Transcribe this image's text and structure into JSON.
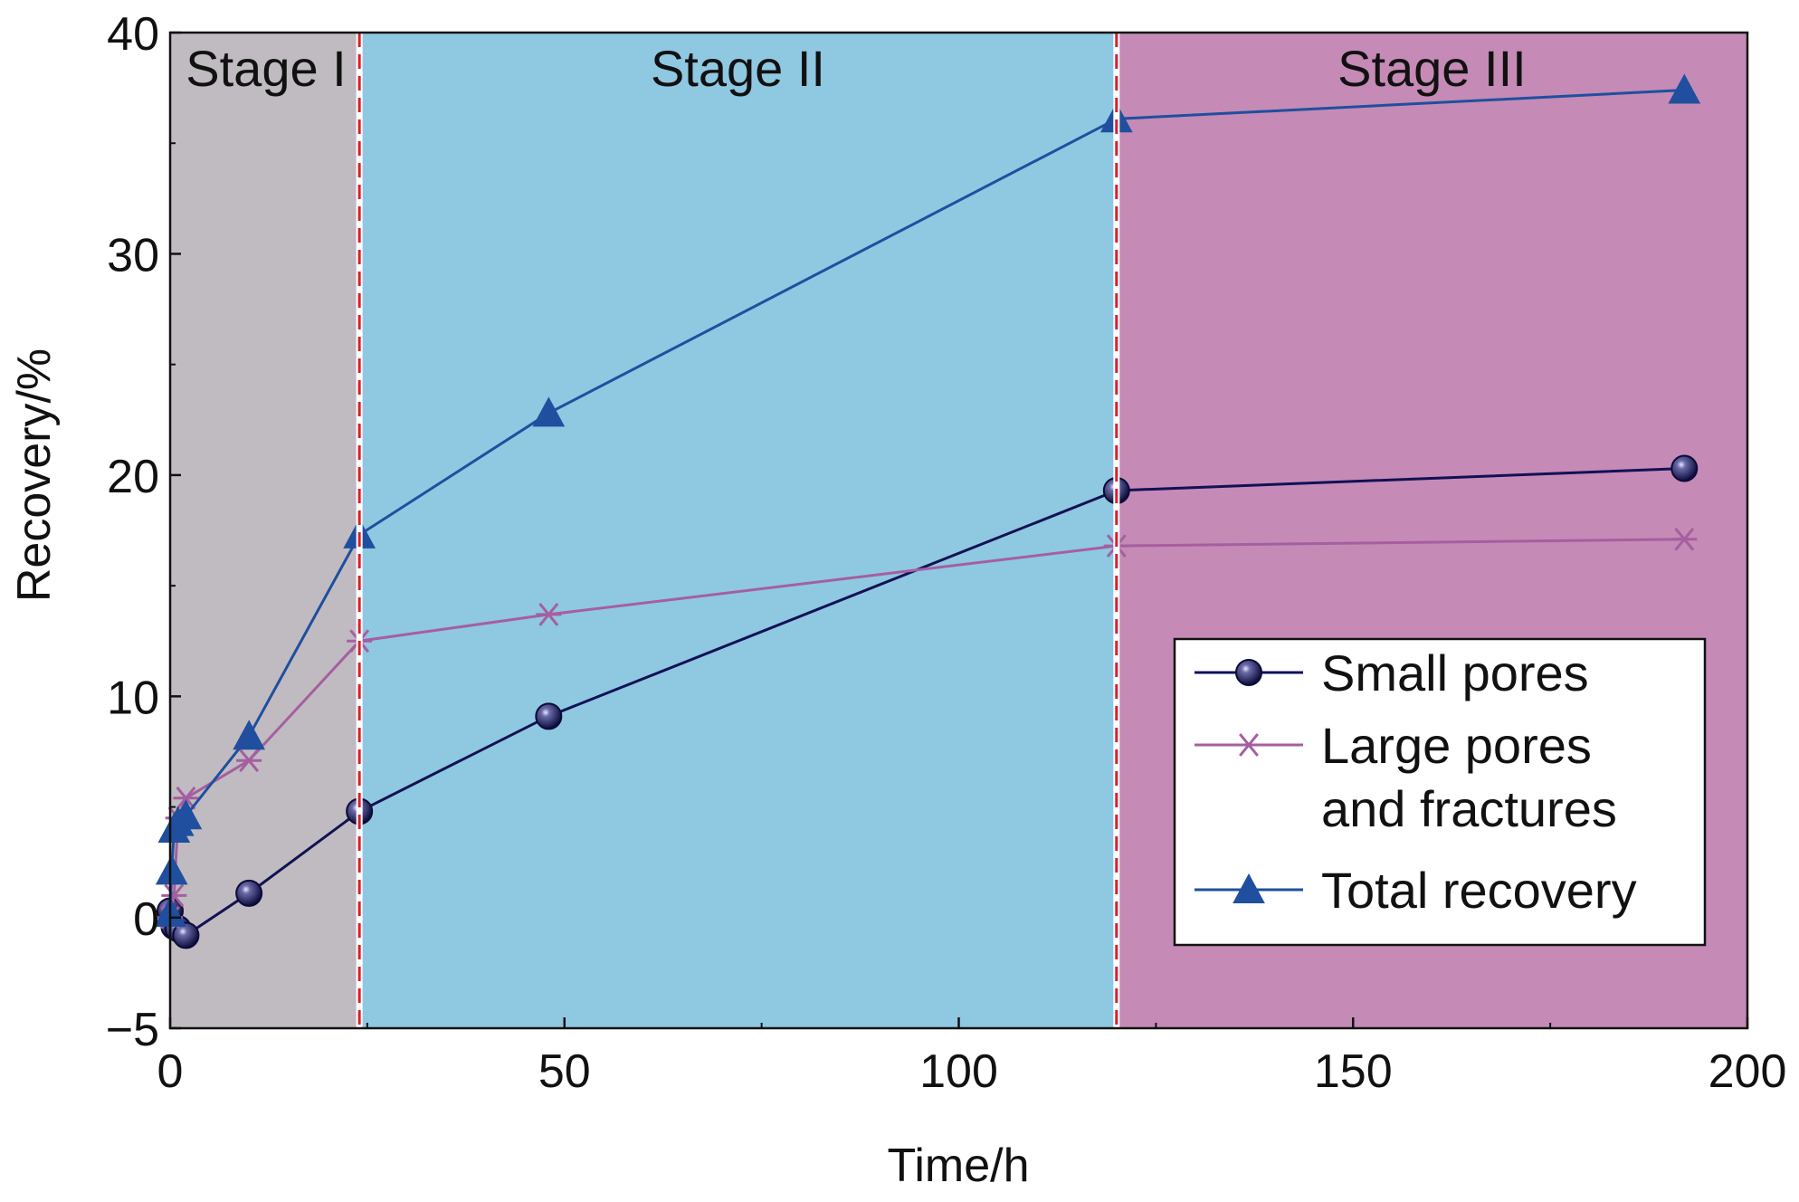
{
  "chart_data": {
    "type": "line",
    "xlabel": "Time/h",
    "ylabel": "Recovery/%",
    "xlim": [
      0,
      200
    ],
    "ylim": [
      -5,
      40
    ],
    "xticks": [
      "0",
      "50",
      "100",
      "150",
      "200"
    ],
    "yticks": [
      "−5",
      "0",
      "10",
      "20",
      "30",
      "40"
    ],
    "grid": false,
    "legend_position": "bottom-right",
    "stages": [
      {
        "label": "Stage I",
        "from": 0,
        "to": 24,
        "color": "#c0bbc0"
      },
      {
        "label": "Stage II",
        "from": 24,
        "to": 120,
        "color": "#8fc8e1"
      },
      {
        "label": "Stage III",
        "from": 120,
        "to": 200,
        "color": "#c58ab6"
      }
    ],
    "stage_boundaries": [
      24,
      120
    ],
    "series": [
      {
        "name": "Small pores",
        "marker": "circle",
        "color": "#111155",
        "x": [
          0,
          0.5,
          1,
          2,
          10,
          24,
          48,
          120,
          192
        ],
        "y": [
          0.3,
          -0.4,
          -0.5,
          -0.8,
          1.1,
          4.8,
          9.1,
          19.3,
          20.3
        ]
      },
      {
        "name": "Large pores\nand fractures",
        "marker": "asterisk",
        "color": "#a55fa0",
        "x": [
          0,
          0.5,
          1,
          2,
          10,
          24,
          48,
          120,
          192
        ],
        "y": [
          0,
          1.0,
          4.5,
          5.4,
          7.1,
          12.5,
          13.7,
          16.8,
          17.1
        ]
      },
      {
        "name": "Total recovery",
        "marker": "triangle",
        "color": "#1f4f9e",
        "x": [
          0,
          0.2,
          0.5,
          1,
          2,
          10,
          24,
          48,
          120,
          192
        ],
        "y": [
          0.2,
          2.1,
          4.0,
          4.3,
          4.6,
          8.2,
          17.3,
          22.8,
          36.1,
          37.4
        ]
      }
    ]
  }
}
